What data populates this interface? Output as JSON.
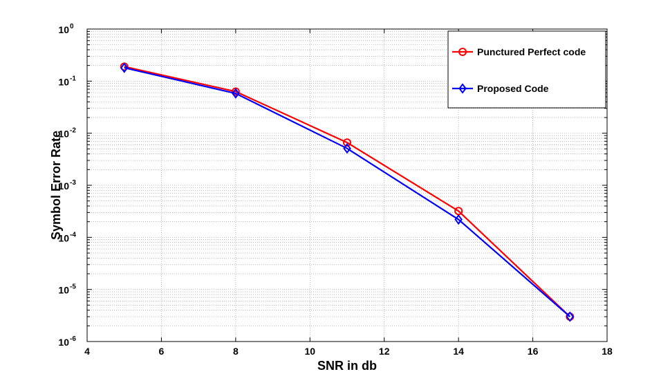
{
  "chart_data": {
    "type": "line",
    "xlabel": "SNR in db",
    "ylabel": "Symbol Error Rate",
    "xlim": [
      4,
      18
    ],
    "ylim": [
      1e-06,
      1
    ],
    "yscale": "log",
    "x_ticks": [
      "4",
      "6",
      "8",
      "10",
      "12",
      "14",
      "16",
      "18"
    ],
    "y_ticks": [
      {
        "base": "10",
        "exp": "0"
      },
      {
        "base": "10",
        "exp": "-1"
      },
      {
        "base": "10",
        "exp": "-2"
      },
      {
        "base": "10",
        "exp": "-3"
      },
      {
        "base": "10",
        "exp": "-4"
      },
      {
        "base": "10",
        "exp": "-5"
      },
      {
        "base": "10",
        "exp": "-6"
      }
    ],
    "grid": "major and minor, dotted",
    "legend_position": "top-right",
    "series": [
      {
        "name": "Punctured Perfect code",
        "color": "#ff0000",
        "marker": "circle",
        "x": [
          5,
          8,
          11,
          14,
          17
        ],
        "y": [
          0.19,
          0.063,
          0.0066,
          0.00032,
          3e-06
        ]
      },
      {
        "name": "Proposed Code",
        "color": "#0000ff",
        "marker": "diamond",
        "x": [
          5,
          8,
          11,
          14,
          17
        ],
        "y": [
          0.18,
          0.058,
          0.0051,
          0.00022,
          3e-06
        ]
      }
    ]
  }
}
